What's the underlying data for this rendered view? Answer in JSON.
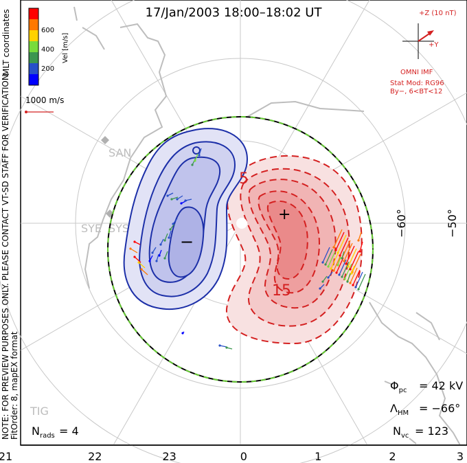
{
  "title": "17/Jan/2003 18:00–18:02 UT",
  "side_note": "NOTE: FOR PREVIEW PURPOSES ONLY. PLEASE CONTACT VT-SD STAFF FOR VERIFICATION.",
  "side_fit": "FitOrder: 8, mapEX format",
  "side_coords": "MLT coordinates",
  "colorbar": {
    "title": "Vel [m/s]",
    "ticks": [
      "600",
      "400",
      "200"
    ],
    "colors": [
      "#ff0000",
      "#ff7800",
      "#ffd200",
      "#78dc3c",
      "#3c9650",
      "#2850c8",
      "#0000ff"
    ]
  },
  "velocity_scale": "1000 m/s",
  "imf": {
    "z_label": "+Z (10 nT)",
    "y_label": "+Y",
    "source": "OMNI IMF",
    "stat_model": "Stat Mod: RG96",
    "stat_bin": "By−, 6<BT<12"
  },
  "stats": {
    "phi_pc": "= 42 kV",
    "lambda_hm": "= −66°",
    "n_vc": "= 123",
    "n_rads": "= 4"
  },
  "mlt_ticks": [
    "21",
    "22",
    "23",
    "0",
    "1",
    "2",
    "3"
  ],
  "lat_ticks": [
    "−60°",
    "−50°"
  ],
  "stations": [
    "SAN",
    "SYE",
    "SYS",
    "TIG"
  ],
  "contour_labels": [
    "5",
    "15"
  ],
  "cell_symbols": {
    "min": "−",
    "max": "+",
    "zero": "0"
  },
  "colors": {
    "negative_cell": "#1c2fa8",
    "positive_cell": "#d42020",
    "hm_boundary": "#66cc33",
    "coast": "#bdbdbd",
    "grid": "#c8c8c8"
  }
}
